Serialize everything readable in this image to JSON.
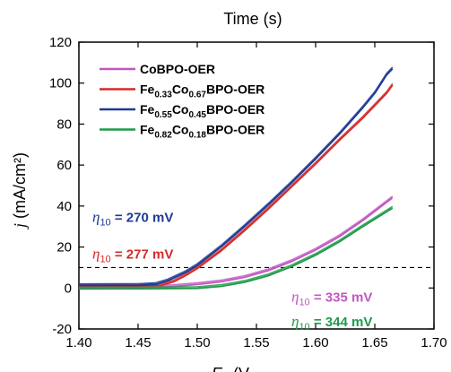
{
  "chart_data": {
    "type": "line",
    "top_title": "Time (s)",
    "xlabel": "E",
    "xlabel_paren": "(V",
    "ylabel": "j (mA/cm²)",
    "xlim": [
      1.4,
      1.7
    ],
    "ylim": [
      -20,
      120
    ],
    "xticks": [
      "1.40",
      "1.45",
      "1.50",
      "1.55",
      "1.60",
      "1.65",
      "1.70"
    ],
    "yticks": [
      "-20",
      "0",
      "20",
      "40",
      "60",
      "80",
      "100",
      "120"
    ],
    "reference_line": {
      "y": 10,
      "style": "dashed",
      "color": "#000000"
    },
    "legend_position": "top-left",
    "series": [
      {
        "name": "CoBPO-OER",
        "color": "#c058c0",
        "x": [
          1.4,
          1.45,
          1.48,
          1.5,
          1.52,
          1.54,
          1.56,
          1.58,
          1.6,
          1.62,
          1.64,
          1.665
        ],
        "y": [
          0,
          0.2,
          0.8,
          1.7,
          3.0,
          5.2,
          8.5,
          13,
          18.5,
          25,
          33,
          44
        ]
      },
      {
        "name": "Fe0.33Co0.67BPO-OER",
        "color": "#d42a2a",
        "x": [
          1.4,
          1.45,
          1.47,
          1.48,
          1.49,
          1.5,
          1.52,
          1.54,
          1.56,
          1.58,
          1.6,
          1.62,
          1.64,
          1.65,
          1.66,
          1.665
        ],
        "y": [
          0.8,
          0.9,
          1.3,
          3.0,
          6.0,
          9.5,
          18,
          28,
          38.5,
          49.5,
          60.5,
          72,
          83,
          89,
          95,
          99
        ]
      },
      {
        "name": "Fe0.55Co0.45BPO-OER",
        "color": "#1c3a94",
        "x": [
          1.4,
          1.45,
          1.465,
          1.475,
          1.49,
          1.5,
          1.52,
          1.54,
          1.56,
          1.58,
          1.6,
          1.62,
          1.64,
          1.65,
          1.66,
          1.665
        ],
        "y": [
          1.2,
          1.3,
          1.8,
          3.5,
          7.5,
          11,
          20,
          30,
          40.5,
          51.5,
          63,
          75,
          88,
          95,
          104,
          107
        ]
      },
      {
        "name": "Fe0.82Co0.18BPO-OER",
        "color": "#1f9a4a",
        "x": [
          1.4,
          1.45,
          1.5,
          1.52,
          1.54,
          1.56,
          1.58,
          1.6,
          1.62,
          1.64,
          1.665
        ],
        "y": [
          -0.5,
          -0.4,
          -0.2,
          0.8,
          2.8,
          6,
          10.5,
          16,
          22.5,
          30,
          39
        ]
      }
    ],
    "legend": [
      {
        "base": "CoBPO-OER",
        "color": "#c058c0",
        "parts": []
      },
      {
        "base": "Fe",
        "color": "#d42a2a",
        "parts": [
          {
            "sub": "0.33",
            "text": "Co"
          },
          {
            "sub": "0.67",
            "text": "BPO-OER"
          }
        ]
      },
      {
        "base": "Fe",
        "color": "#1c3a94",
        "parts": [
          {
            "sub": "0.55",
            "text": "Co"
          },
          {
            "sub": "0.45",
            "text": "BPO-OER"
          }
        ]
      },
      {
        "base": "Fe",
        "color": "#1f9a4a",
        "parts": [
          {
            "sub": "0.82",
            "text": "Co"
          },
          {
            "sub": "0.18",
            "text": "BPO-OER"
          }
        ]
      }
    ],
    "annotations": [
      {
        "symbol": "η",
        "sub": "10",
        "text": " = 270 mV",
        "color": "#1c3a94",
        "anchor": [
          1.4,
          35
        ]
      },
      {
        "symbol": "η",
        "sub": "10",
        "text": " = 277 mV",
        "color": "#d42a2a",
        "anchor": [
          1.4,
          17
        ]
      },
      {
        "symbol": "η",
        "sub": "10",
        "text": " = 335 mV",
        "color": "#c058c0",
        "anchor": [
          1.578,
          -4
        ]
      },
      {
        "symbol": "η",
        "sub": "10",
        "text": " = 344 mV",
        "color": "#1f9a4a",
        "anchor": [
          1.578,
          -16
        ]
      }
    ]
  }
}
